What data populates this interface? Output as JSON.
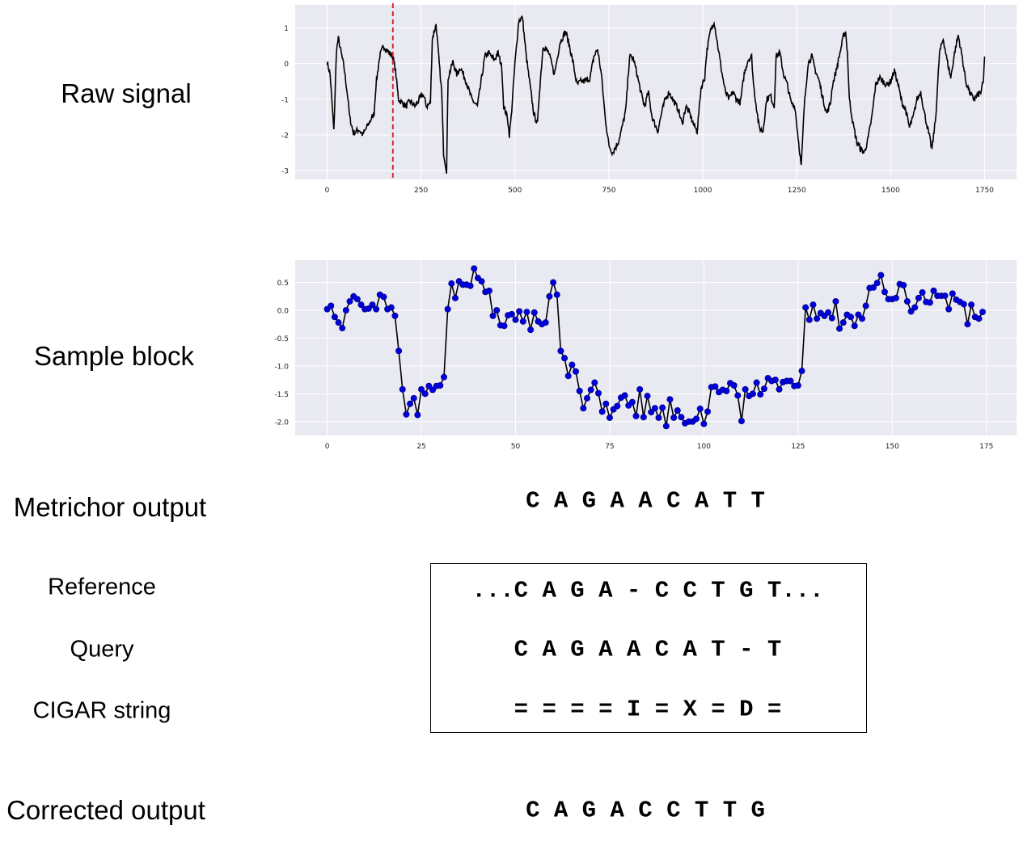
{
  "labels": {
    "raw_signal": "Raw signal",
    "sample_block": "Sample block",
    "metrichor_output": "Metrichor output",
    "reference": "Reference",
    "query": "Query",
    "cigar": "CIGAR string",
    "corrected_output": "Corrected output"
  },
  "sequences": {
    "metrichor": "C A G A A C A T T",
    "reference": "...C A G A - C C T G T...",
    "query": "C A G A A C A T - T",
    "cigar": "= = = = I = X = D =",
    "corrected": "C A G A C C T T G"
  },
  "colors": {
    "plot_background": "#e9e9f1",
    "grid": "#ffffff",
    "line": "#000000",
    "marker": "#0000dd",
    "marker_edge": "#00008b",
    "marker_line": "#d62728"
  },
  "chart_data": [
    {
      "type": "line",
      "xlim": [
        -85,
        1835
      ],
      "ylim": [
        -3.25,
        1.65
      ],
      "xticks": [
        0,
        250,
        500,
        750,
        1000,
        1250,
        1500,
        1750
      ],
      "yticks": [
        -3,
        -2,
        -1,
        0,
        1
      ],
      "grid": true,
      "vline_x": 175,
      "x_range": [
        0,
        1750
      ],
      "series": [
        {
          "values": [
            [
              0,
              0.05
            ],
            [
              8,
              -0.3
            ],
            [
              18,
              -1.9
            ],
            [
              25,
              0.4
            ],
            [
              30,
              0.7
            ],
            [
              45,
              -0.1
            ],
            [
              55,
              -0.95
            ],
            [
              60,
              -1.5
            ],
            [
              70,
              -1.95
            ],
            [
              85,
              -1.85
            ],
            [
              95,
              -2.0
            ],
            [
              110,
              -1.7
            ],
            [
              125,
              -1.4
            ],
            [
              130,
              -0.6
            ],
            [
              140,
              0.2
            ],
            [
              150,
              0.5
            ],
            [
              165,
              0.3
            ],
            [
              175,
              0.2
            ],
            [
              182,
              -0.2
            ],
            [
              190,
              -1.0
            ],
            [
              200,
              -1.1
            ],
            [
              210,
              -1.2
            ],
            [
              220,
              -1.05
            ],
            [
              235,
              -1.2
            ],
            [
              245,
              -1.0
            ],
            [
              255,
              -0.85
            ],
            [
              265,
              -1.2
            ],
            [
              275,
              -1.1
            ],
            [
              280,
              0.7
            ],
            [
              290,
              1.1
            ],
            [
              300,
              -0.2
            ],
            [
              305,
              -0.8
            ],
            [
              310,
              -2.5
            ],
            [
              318,
              -3.0
            ],
            [
              322,
              -0.4
            ],
            [
              335,
              0.05
            ],
            [
              345,
              -0.3
            ],
            [
              355,
              -0.1
            ],
            [
              370,
              -0.5
            ],
            [
              385,
              -1.0
            ],
            [
              400,
              -1.2
            ],
            [
              410,
              -0.5
            ],
            [
              420,
              0.2
            ],
            [
              430,
              0.3
            ],
            [
              445,
              0.1
            ],
            [
              455,
              0.3
            ],
            [
              465,
              -0.1
            ],
            [
              470,
              -1.2
            ],
            [
              480,
              -1.5
            ],
            [
              485,
              -2.0
            ],
            [
              490,
              -1.5
            ],
            [
              500,
              0.0
            ],
            [
              510,
              1.2
            ],
            [
              520,
              1.3
            ],
            [
              530,
              0.2
            ],
            [
              540,
              -0.6
            ],
            [
              550,
              -1.4
            ],
            [
              560,
              -1.7
            ],
            [
              565,
              -0.8
            ],
            [
              575,
              0.5
            ],
            [
              590,
              0.3
            ],
            [
              605,
              -0.3
            ],
            [
              620,
              0.6
            ],
            [
              635,
              0.9
            ],
            [
              645,
              0.5
            ],
            [
              655,
              0.0
            ],
            [
              665,
              -0.6
            ],
            [
              675,
              -0.5
            ],
            [
              685,
              -0.5
            ],
            [
              700,
              -0.4
            ],
            [
              710,
              0.2
            ],
            [
              720,
              0.4
            ],
            [
              730,
              -0.3
            ],
            [
              740,
              -1.5
            ],
            [
              750,
              -2.3
            ],
            [
              760,
              -2.5
            ],
            [
              775,
              -2.2
            ],
            [
              785,
              -1.8
            ],
            [
              795,
              -1.3
            ],
            [
              805,
              0.2
            ],
            [
              815,
              0.15
            ],
            [
              825,
              -0.3
            ],
            [
              835,
              -0.8
            ],
            [
              845,
              -1.2
            ],
            [
              855,
              -0.8
            ],
            [
              865,
              -1.5
            ],
            [
              880,
              -1.9
            ],
            [
              890,
              -1.4
            ],
            [
              900,
              -1.0
            ],
            [
              910,
              -0.8
            ],
            [
              920,
              -1.0
            ],
            [
              935,
              -1.3
            ],
            [
              945,
              -1.7
            ],
            [
              955,
              -1.2
            ],
            [
              965,
              -1.4
            ],
            [
              975,
              -1.7
            ],
            [
              985,
              -1.9
            ],
            [
              995,
              -0.7
            ],
            [
              1005,
              -0.4
            ],
            [
              1010,
              0.3
            ],
            [
              1020,
              0.9
            ],
            [
              1030,
              1.2
            ],
            [
              1040,
              0.5
            ],
            [
              1050,
              -0.2
            ],
            [
              1060,
              -0.8
            ],
            [
              1070,
              -1.0
            ],
            [
              1080,
              -0.8
            ],
            [
              1090,
              -1.0
            ],
            [
              1100,
              -1.1
            ],
            [
              1110,
              -0.3
            ],
            [
              1120,
              0.1
            ],
            [
              1130,
              0.2
            ],
            [
              1135,
              -0.6
            ],
            [
              1140,
              -1.0
            ],
            [
              1150,
              -1.8
            ],
            [
              1160,
              -1.9
            ],
            [
              1170,
              -1.0
            ],
            [
              1180,
              -0.9
            ],
            [
              1190,
              -1.2
            ],
            [
              1195,
              0.2
            ],
            [
              1205,
              0.3
            ],
            [
              1215,
              -0.3
            ],
            [
              1225,
              -0.6
            ],
            [
              1235,
              -1.1
            ],
            [
              1245,
              -1.2
            ],
            [
              1255,
              -2.2
            ],
            [
              1262,
              -2.9
            ],
            [
              1270,
              -1.2
            ],
            [
              1280,
              0.0
            ],
            [
              1290,
              0.2
            ],
            [
              1300,
              -0.2
            ],
            [
              1310,
              -0.5
            ],
            [
              1320,
              -1.0
            ],
            [
              1330,
              -1.4
            ],
            [
              1340,
              -1.1
            ],
            [
              1345,
              -0.6
            ],
            [
              1355,
              -0.2
            ],
            [
              1365,
              0.3
            ],
            [
              1375,
              0.8
            ],
            [
              1380,
              0.9
            ],
            [
              1385,
              0.3
            ],
            [
              1390,
              -1.0
            ],
            [
              1400,
              -1.7
            ],
            [
              1410,
              -2.2
            ],
            [
              1420,
              -2.4
            ],
            [
              1430,
              -2.5
            ],
            [
              1440,
              -2.1
            ],
            [
              1450,
              -1.5
            ],
            [
              1460,
              -0.6
            ],
            [
              1470,
              -0.4
            ],
            [
              1480,
              -0.5
            ],
            [
              1490,
              -0.6
            ],
            [
              1500,
              -0.5
            ],
            [
              1510,
              -0.2
            ],
            [
              1520,
              -0.6
            ],
            [
              1530,
              -1.1
            ],
            [
              1540,
              -1.3
            ],
            [
              1550,
              -1.8
            ],
            [
              1560,
              -1.5
            ],
            [
              1570,
              -1.0
            ],
            [
              1580,
              -0.8
            ],
            [
              1590,
              -1.4
            ],
            [
              1600,
              -1.9
            ],
            [
              1610,
              -2.4
            ],
            [
              1620,
              -1.5
            ],
            [
              1630,
              0.3
            ],
            [
              1640,
              0.7
            ],
            [
              1650,
              0.1
            ],
            [
              1660,
              -0.4
            ],
            [
              1670,
              0.3
            ],
            [
              1680,
              0.8
            ],
            [
              1690,
              0.2
            ],
            [
              1700,
              -0.5
            ],
            [
              1710,
              -0.8
            ],
            [
              1720,
              -1.0
            ],
            [
              1730,
              -0.9
            ],
            [
              1740,
              -0.8
            ],
            [
              1747,
              -0.5
            ],
            [
              1750,
              0.2
            ]
          ]
        }
      ]
    },
    {
      "type": "line",
      "xlim": [
        -8.5,
        183
      ],
      "ylim": [
        -2.25,
        0.9
      ],
      "xticks": [
        0,
        25,
        50,
        75,
        100,
        125,
        150,
        175
      ],
      "yticks": [
        -2.0,
        -1.5,
        -1.0,
        -0.5,
        0.0,
        0.5
      ],
      "grid": true,
      "markers": true,
      "values": [
        0.02,
        0.08,
        -0.12,
        -0.22,
        -0.32,
        0.0,
        0.16,
        0.25,
        0.2,
        0.1,
        0.02,
        0.03,
        0.1,
        0.02,
        0.28,
        0.24,
        0.02,
        0.05,
        -0.1,
        -0.73,
        -1.42,
        -1.87,
        -1.68,
        -1.58,
        -1.88,
        -1.42,
        -1.5,
        -1.36,
        -1.43,
        -1.36,
        -1.35,
        -1.2,
        0.02,
        0.48,
        0.22,
        0.52,
        0.46,
        0.46,
        0.44,
        0.75,
        0.58,
        0.52,
        0.33,
        0.35,
        -0.1,
        0.0,
        -0.27,
        -0.28,
        -0.09,
        -0.07,
        -0.17,
        -0.02,
        -0.2,
        -0.03,
        -0.35,
        -0.04,
        -0.2,
        -0.25,
        -0.22,
        0.25,
        0.5,
        0.28,
        -0.73,
        -0.86,
        -1.18,
        -0.98,
        -1.1,
        -1.45,
        -1.76,
        -1.58,
        -1.43,
        -1.3,
        -1.49,
        -1.82,
        -1.68,
        -1.93,
        -1.78,
        -1.72,
        -1.57,
        -1.53,
        -1.71,
        -1.65,
        -1.9,
        -1.42,
        -1.92,
        -1.54,
        -1.83,
        -1.76,
        -1.93,
        -1.75,
        -2.08,
        -1.6,
        -1.93,
        -1.8,
        -1.92,
        -2.03,
        -2.0,
        -2.0,
        -1.95,
        -1.77,
        -2.04,
        -1.82,
        -1.38,
        -1.37,
        -1.47,
        -1.43,
        -1.45,
        -1.31,
        -1.35,
        -1.53,
        -1.99,
        -1.42,
        -1.54,
        -1.5,
        -1.3,
        -1.51,
        -1.41,
        -1.22,
        -1.27,
        -1.25,
        -1.42,
        -1.29,
        -1.27,
        -1.27,
        -1.36,
        -1.35,
        -1.09,
        0.05,
        -0.17,
        0.1,
        -0.15,
        -0.05,
        -0.1,
        -0.04,
        -0.14,
        0.16,
        -0.33,
        -0.22,
        -0.08,
        -0.12,
        -0.28,
        -0.08,
        -0.15,
        0.08,
        0.4,
        0.41,
        0.49,
        0.63,
        0.33,
        0.2,
        0.2,
        0.22,
        0.47,
        0.45,
        0.16,
        -0.02,
        0.05,
        0.22,
        0.32,
        0.15,
        0.14,
        0.35,
        0.26,
        0.26,
        0.26,
        0.02,
        0.3,
        0.19,
        0.15,
        0.11,
        -0.25,
        0.1,
        -0.12,
        -0.15,
        -0.03
      ]
    }
  ]
}
